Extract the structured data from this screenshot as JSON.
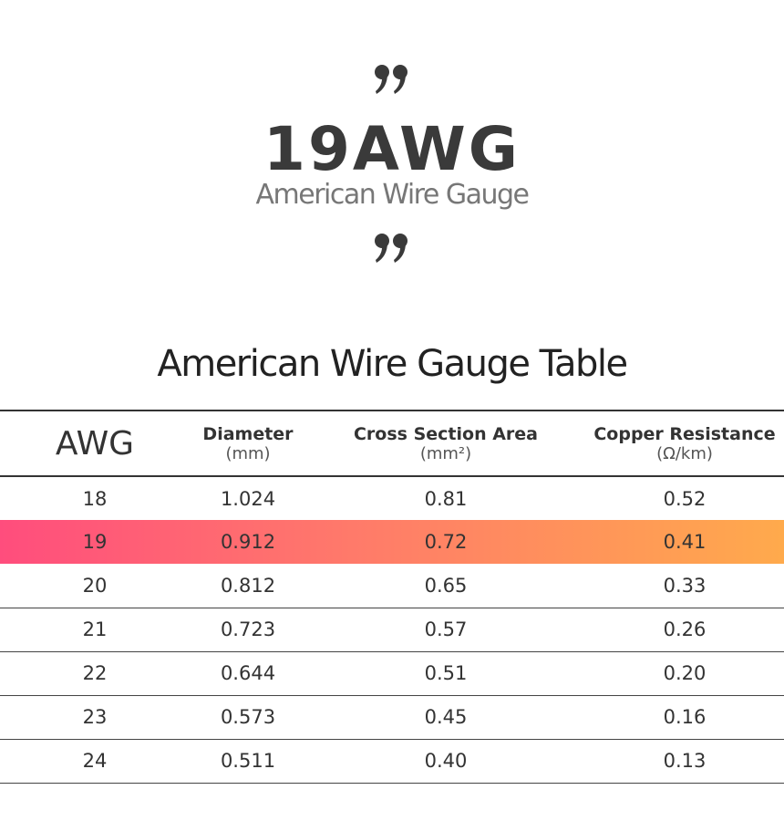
{
  "hero": {
    "title": "19AWG",
    "subtitle": "American Wire Gauge"
  },
  "table": {
    "title": "American Wire Gauge Table",
    "columns": [
      {
        "name": "AWG"
      },
      {
        "name": "Diameter",
        "unit": "(mm)"
      },
      {
        "name": "Cross Section Area",
        "unit": "(mm²)"
      },
      {
        "name": "Copper Resistance",
        "unit": "(Ω/km)"
      }
    ],
    "rows": [
      [
        "18",
        "1.024",
        "0.81",
        "0.52"
      ],
      [
        "19",
        "0.912",
        "0.72",
        "0.41"
      ],
      [
        "20",
        "0.812",
        "0.65",
        "0.33"
      ],
      [
        "21",
        "0.723",
        "0.57",
        "0.26"
      ],
      [
        "22",
        "0.644",
        "0.51",
        "0.20"
      ],
      [
        "23",
        "0.573",
        "0.45",
        "0.16"
      ],
      [
        "24",
        "0.511",
        "0.40",
        "0.13"
      ]
    ]
  }
}
